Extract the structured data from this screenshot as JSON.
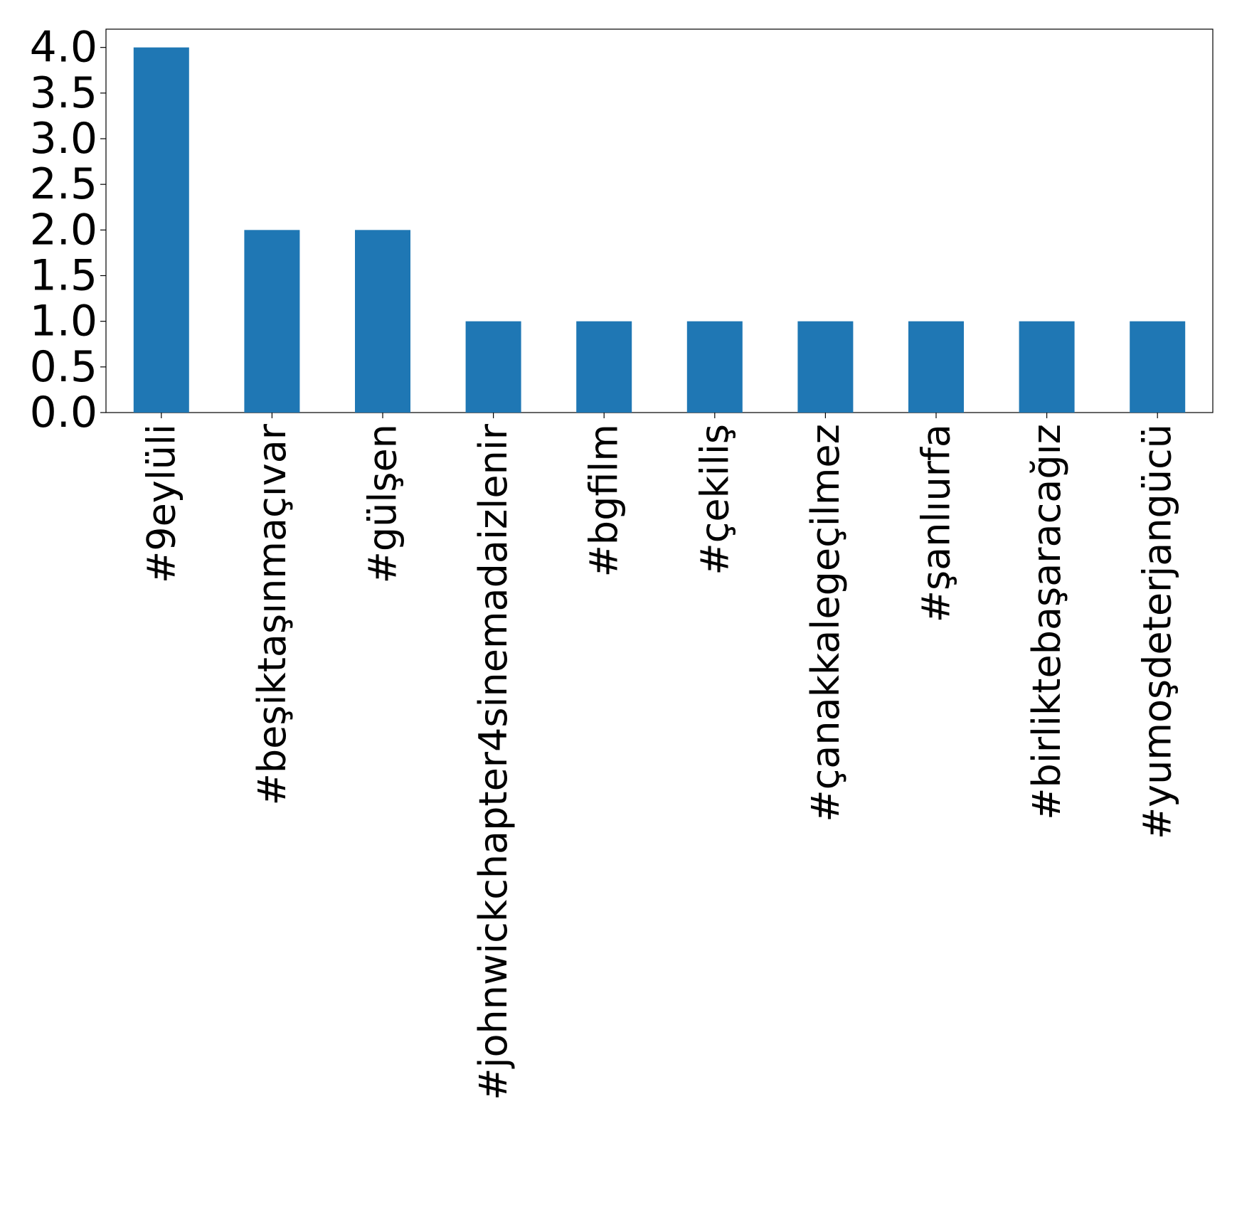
{
  "chart_data": {
    "type": "bar",
    "title": "",
    "xlabel": "",
    "ylabel": "",
    "categories": [
      "#9eylüli",
      "#beşiktaşınmaçıvar",
      "#gülşen",
      "#johnwickchapter4sinemadaizlenir",
      "#bgfilm",
      "#çekiliş",
      "#çanakkalegeçilmez",
      "#şanlıurfa",
      "#birliktebaşaracağız",
      "#yumoşdeterjangücü"
    ],
    "values": [
      4,
      2,
      2,
      1,
      1,
      1,
      1,
      1,
      1,
      1
    ],
    "ylim": [
      0,
      4.2
    ],
    "yticks": [
      "0.0",
      "0.5",
      "1.0",
      "1.5",
      "2.0",
      "2.5",
      "3.0",
      "3.5",
      "4.0"
    ],
    "grid": false,
    "legend": "none",
    "bar_color": "#1f77b4"
  }
}
